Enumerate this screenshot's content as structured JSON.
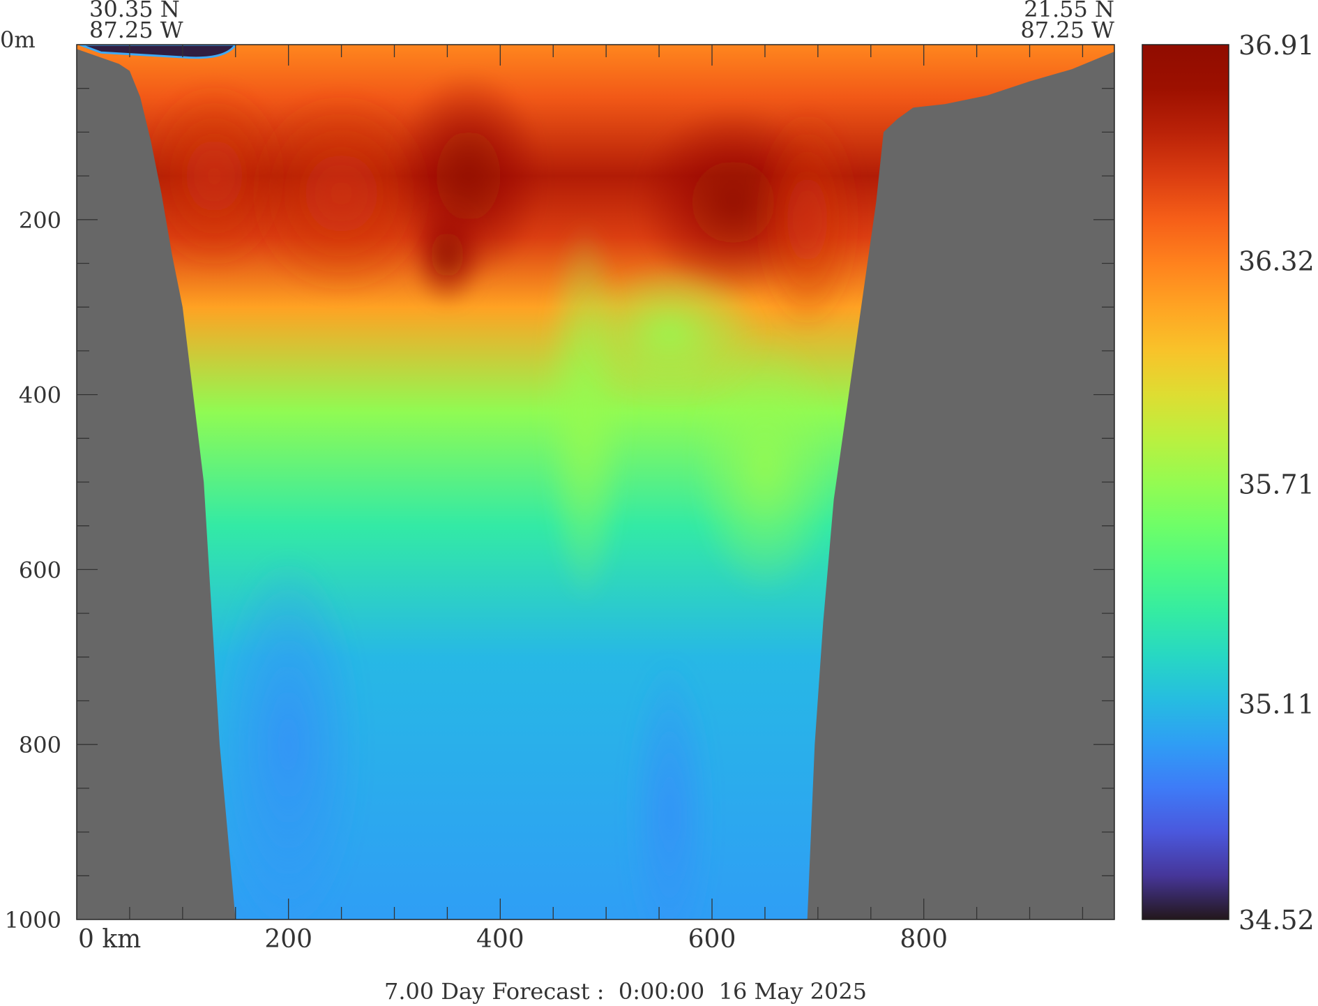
{
  "chart_data": {
    "type": "heatmap",
    "title": "7.00 Day Forecast :  0:00:00  16 May 2025",
    "start_point": {
      "lat": "30.35 N",
      "lon": "87.25 W"
    },
    "end_point": {
      "lat": "21.55 N",
      "lon": "87.25 W"
    },
    "x_axis": {
      "unit_label": "km",
      "range": [
        0,
        980
      ],
      "major_ticks": [
        0,
        200,
        400,
        600,
        800
      ],
      "major_tick_labels": [
        "0 km",
        "200",
        "400",
        "600",
        "800"
      ],
      "minor_ticks": [
        50,
        100,
        150,
        250,
        300,
        350,
        450,
        500,
        550,
        650,
        700,
        750,
        850,
        900,
        950
      ]
    },
    "y_axis": {
      "unit_label": "m",
      "range": [
        0,
        1000
      ],
      "inverted": true,
      "major_ticks": [
        0,
        200,
        400,
        600,
        800,
        1000
      ],
      "major_tick_labels": [
        "0m",
        "200",
        "400",
        "600",
        "800",
        "1000"
      ],
      "minor_ticks": [
        50,
        100,
        150,
        250,
        300,
        350,
        450,
        500,
        550,
        650,
        700,
        750,
        850,
        900,
        950
      ]
    },
    "colorbar": {
      "min": 34.52,
      "max": 36.91,
      "labels": [
        "36.91",
        "36.32",
        "35.71",
        "35.11",
        "34.52"
      ],
      "colormap": "turbo"
    },
    "bottom_profile": {
      "distance_km": [
        0,
        40,
        50,
        60,
        70,
        80,
        90,
        100,
        120,
        135,
        150,
        165,
        690,
        697,
        705,
        715,
        735,
        755,
        762,
        775,
        790,
        820,
        860,
        900,
        940,
        980
      ],
      "depth_m": [
        5,
        22,
        30,
        60,
        110,
        170,
        240,
        300,
        500,
        800,
        1000,
        1000,
        1000,
        800,
        660,
        520,
        350,
        180,
        100,
        85,
        72,
        68,
        58,
        42,
        28,
        8
      ]
    },
    "low_salinity_surface_lens": {
      "from_km": 3,
      "to_km": 150,
      "max_depth_m": 18,
      "value": 34.55
    },
    "salinity_structure": {
      "note": "high-salinity core (~36.8) at 120-250 m near 340-400 km and 600-700 km; fresher (~35.0) water below 350 m; tongue of ~35.7 water reaching 600 m near 480 km and 650 km",
      "depth_profile_m": [
        0,
        60,
        150,
        220,
        300,
        420,
        550,
        700,
        1000
      ],
      "mean_value": [
        36.3,
        36.45,
        36.7,
        36.55,
        36.2,
        35.7,
        35.35,
        35.1,
        35.0
      ]
    }
  }
}
